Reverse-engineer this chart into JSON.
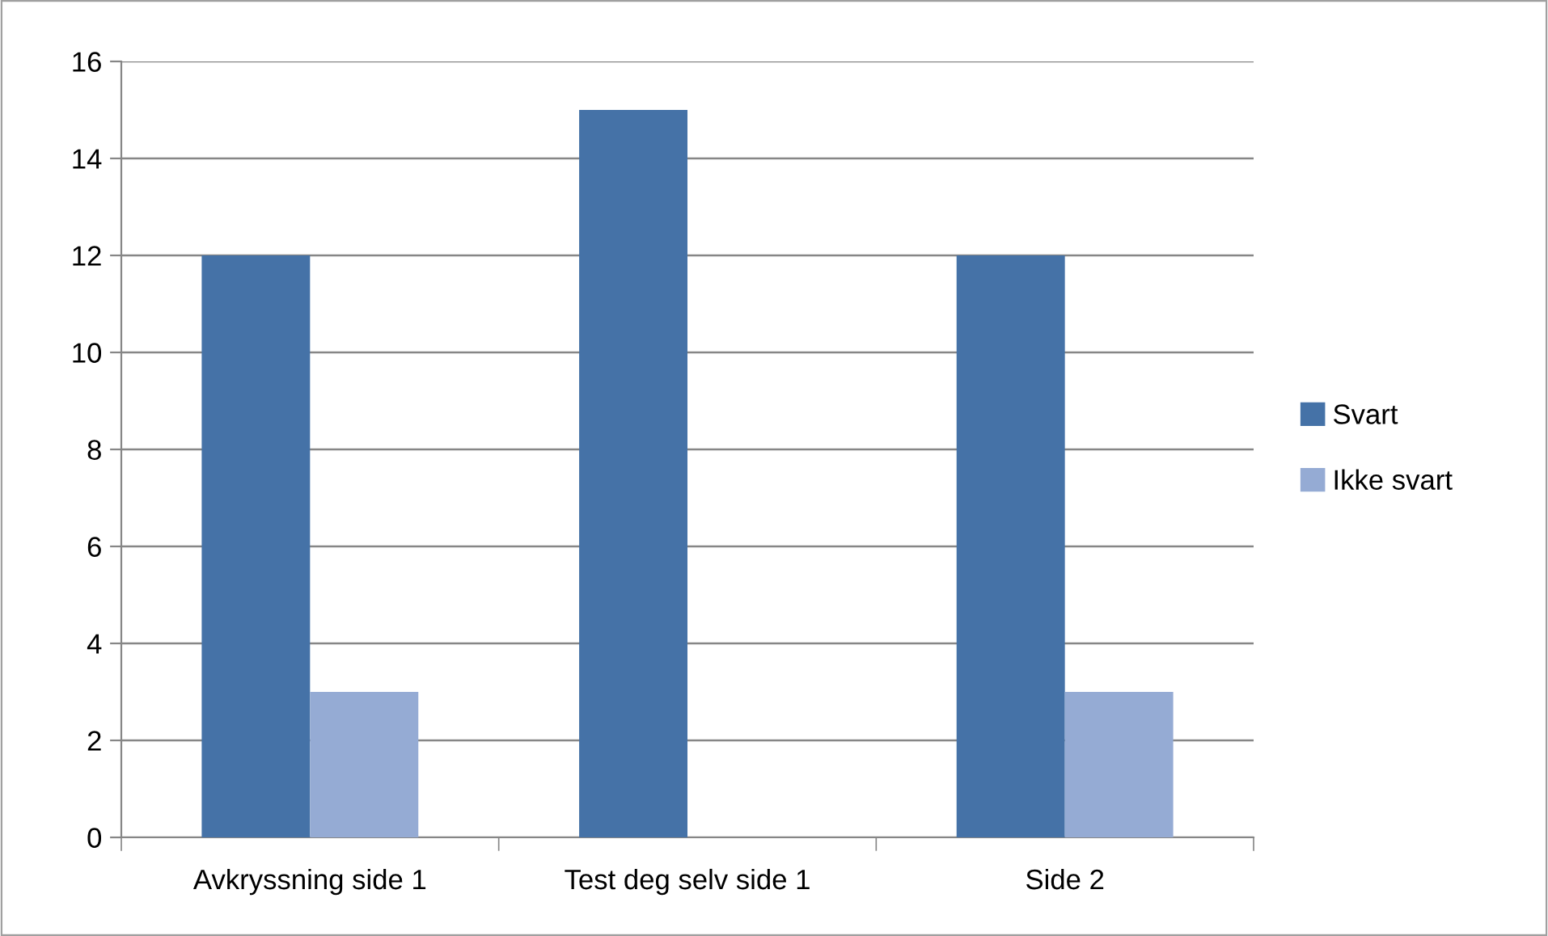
{
  "chart_data": {
    "type": "bar",
    "categories": [
      "Avkryssning side 1",
      "Test deg selv side 1",
      "Side 2"
    ],
    "series": [
      {
        "name": "Svart",
        "color": "#4572a7",
        "values": [
          12,
          15,
          12
        ]
      },
      {
        "name": "Ikke svart",
        "color": "#95abd4",
        "values": [
          3,
          0,
          3
        ]
      }
    ],
    "ylim": [
      0,
      16
    ],
    "yticks": [
      0,
      2,
      4,
      6,
      8,
      10,
      12,
      14,
      16
    ],
    "grid": "y",
    "legend": "right"
  }
}
